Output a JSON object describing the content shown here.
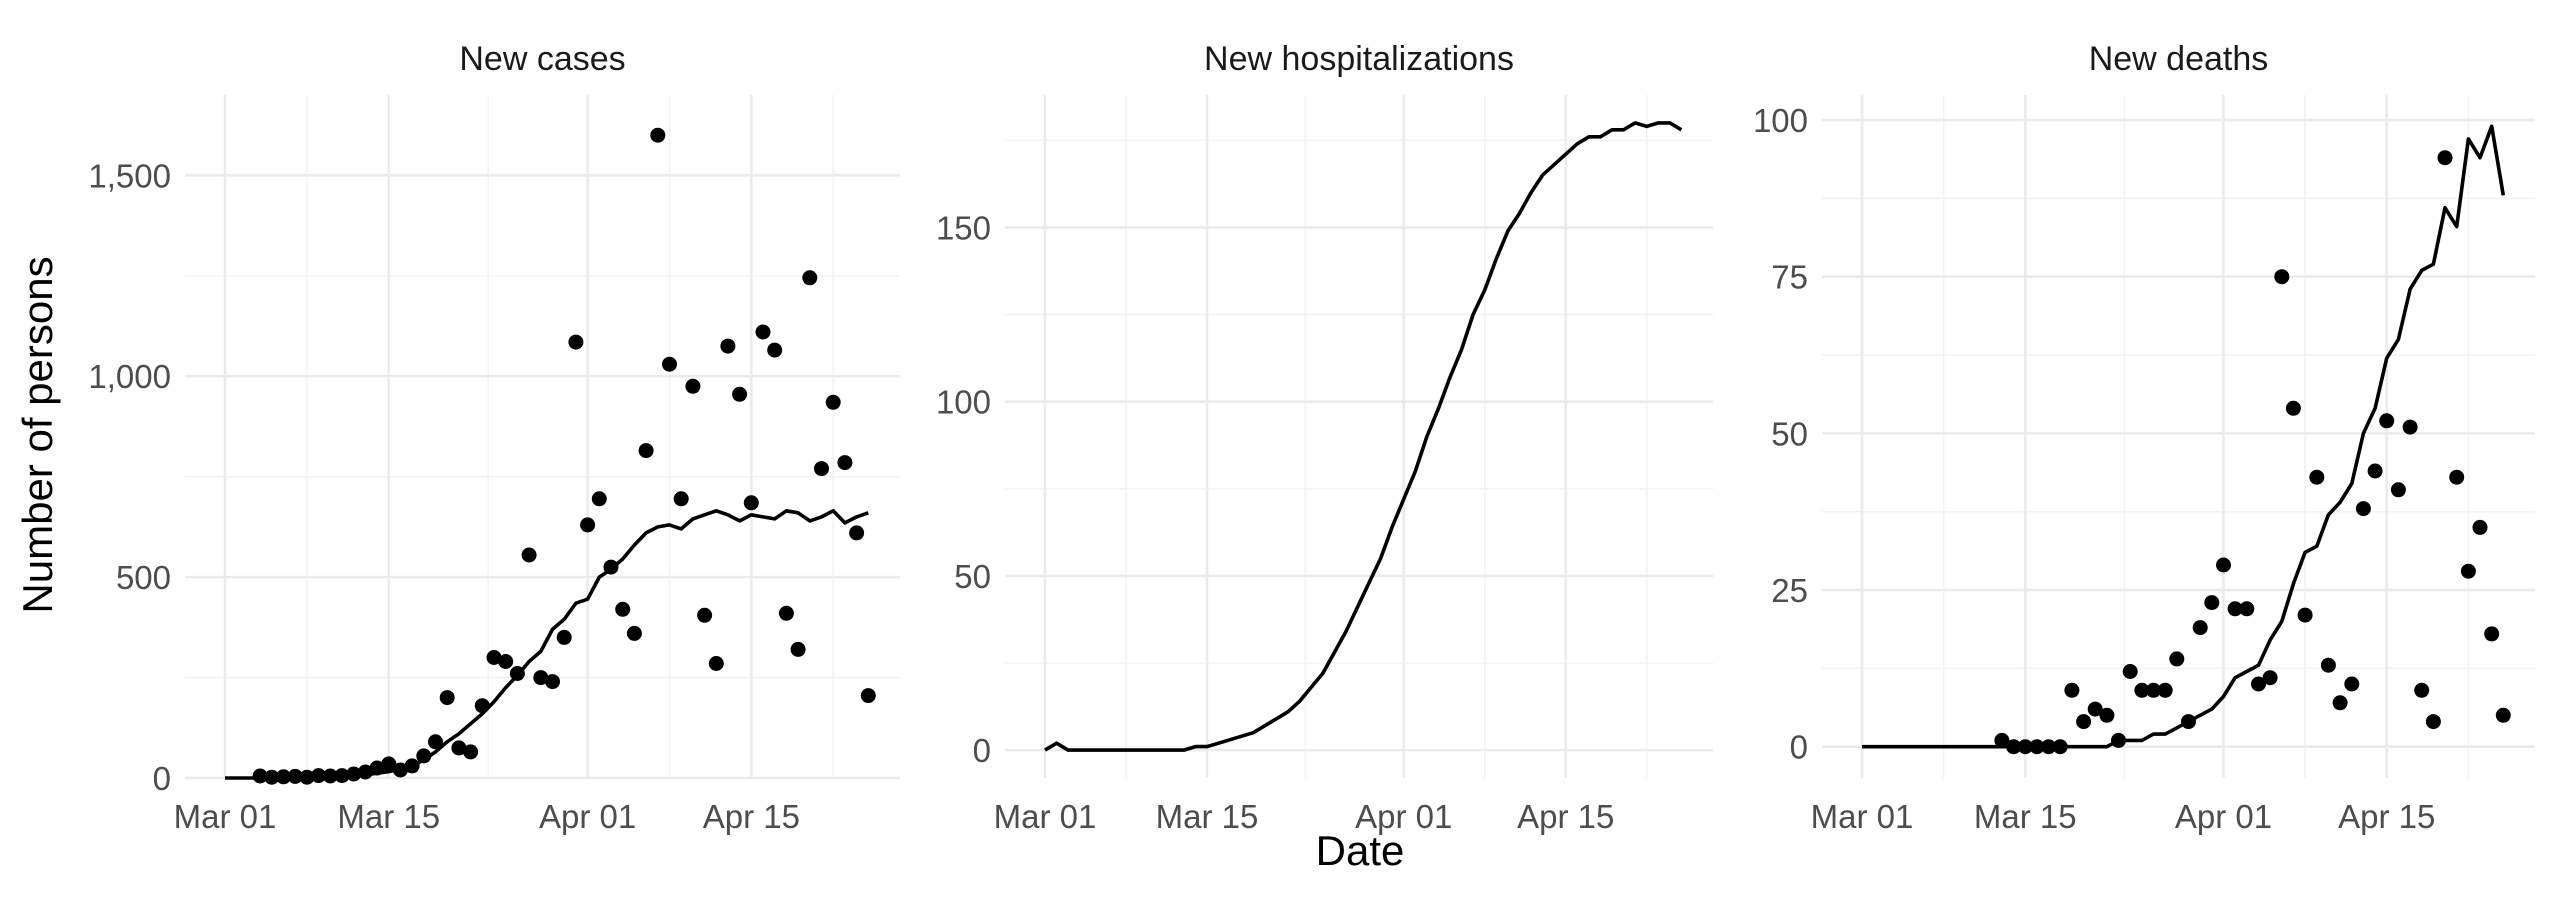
{
  "figure": {
    "ylabel": "Number of persons",
    "xlabel": "Date"
  },
  "chart_data": [
    {
      "type": "scatter",
      "title": "New cases",
      "xlabel": "Date",
      "ylabel": "Number of persons",
      "x_range": [
        "2020-03-01",
        "2020-04-26"
      ],
      "ylim": [
        0,
        1700
      ],
      "x_ticks": [
        {
          "date": "2020-03-01",
          "label": "Mar 01"
        },
        {
          "date": "2020-03-15",
          "label": "Mar 15"
        },
        {
          "date": "2020-04-01",
          "label": "Apr 01"
        },
        {
          "date": "2020-04-15",
          "label": "Apr 15"
        }
      ],
      "y_ticks": [
        {
          "value": 0,
          "label": "0"
        },
        {
          "value": 500,
          "label": "500"
        },
        {
          "value": 1000,
          "label": "1,000"
        },
        {
          "value": 1500,
          "label": "1,500"
        }
      ],
      "grid": true,
      "points": [
        [
          "2020-03-04",
          5
        ],
        [
          "2020-03-05",
          2
        ],
        [
          "2020-03-06",
          3
        ],
        [
          "2020-03-07",
          4
        ],
        [
          "2020-03-08",
          2
        ],
        [
          "2020-03-09",
          6
        ],
        [
          "2020-03-10",
          5
        ],
        [
          "2020-03-11",
          6
        ],
        [
          "2020-03-12",
          10
        ],
        [
          "2020-03-13",
          15
        ],
        [
          "2020-03-14",
          25
        ],
        [
          "2020-03-15",
          35
        ],
        [
          "2020-03-16",
          20
        ],
        [
          "2020-03-17",
          30
        ],
        [
          "2020-03-18",
          55
        ],
        [
          "2020-03-19",
          90
        ],
        [
          "2020-03-20",
          200
        ],
        [
          "2020-03-21",
          75
        ],
        [
          "2020-03-22",
          65
        ],
        [
          "2020-03-23",
          180
        ],
        [
          "2020-03-24",
          300
        ],
        [
          "2020-03-25",
          290
        ],
        [
          "2020-03-26",
          260
        ],
        [
          "2020-03-27",
          555
        ],
        [
          "2020-03-28",
          250
        ],
        [
          "2020-03-29",
          240
        ],
        [
          "2020-03-30",
          350
        ],
        [
          "2020-03-31",
          1085
        ],
        [
          "2020-04-01",
          630
        ],
        [
          "2020-04-02",
          695
        ],
        [
          "2020-04-03",
          525
        ],
        [
          "2020-04-04",
          420
        ],
        [
          "2020-04-05",
          360
        ],
        [
          "2020-04-06",
          815
        ],
        [
          "2020-04-07",
          1600
        ],
        [
          "2020-04-08",
          1030
        ],
        [
          "2020-04-09",
          695
        ],
        [
          "2020-04-10",
          975
        ],
        [
          "2020-04-11",
          405
        ],
        [
          "2020-04-12",
          285
        ],
        [
          "2020-04-13",
          1075
        ],
        [
          "2020-04-14",
          955
        ],
        [
          "2020-04-15",
          685
        ],
        [
          "2020-04-16",
          1110
        ],
        [
          "2020-04-17",
          1065
        ],
        [
          "2020-04-18",
          410
        ],
        [
          "2020-04-19",
          320
        ],
        [
          "2020-04-20",
          1245
        ],
        [
          "2020-04-21",
          770
        ],
        [
          "2020-04-22",
          935
        ],
        [
          "2020-04-23",
          785
        ],
        [
          "2020-04-24",
          610
        ],
        [
          "2020-04-25",
          205
        ]
      ],
      "line": [
        [
          "2020-03-01",
          0
        ],
        [
          "2020-03-02",
          0
        ],
        [
          "2020-03-03",
          0
        ],
        [
          "2020-03-04",
          0
        ],
        [
          "2020-03-05",
          0
        ],
        [
          "2020-03-06",
          0
        ],
        [
          "2020-03-07",
          0
        ],
        [
          "2020-03-08",
          1
        ],
        [
          "2020-03-09",
          2
        ],
        [
          "2020-03-10",
          3
        ],
        [
          "2020-03-11",
          4
        ],
        [
          "2020-03-12",
          6
        ],
        [
          "2020-03-13",
          8
        ],
        [
          "2020-03-14",
          12
        ],
        [
          "2020-03-15",
          16
        ],
        [
          "2020-03-16",
          22
        ],
        [
          "2020-03-17",
          30
        ],
        [
          "2020-03-18",
          45
        ],
        [
          "2020-03-19",
          65
        ],
        [
          "2020-03-20",
          90
        ],
        [
          "2020-03-21",
          110
        ],
        [
          "2020-03-22",
          135
        ],
        [
          "2020-03-23",
          160
        ],
        [
          "2020-03-24",
          190
        ],
        [
          "2020-03-25",
          225
        ],
        [
          "2020-03-26",
          255
        ],
        [
          "2020-03-27",
          290
        ],
        [
          "2020-03-28",
          315
        ],
        [
          "2020-03-29",
          370
        ],
        [
          "2020-03-30",
          395
        ],
        [
          "2020-03-31",
          435
        ],
        [
          "2020-04-01",
          445
        ],
        [
          "2020-04-02",
          500
        ],
        [
          "2020-04-03",
          520
        ],
        [
          "2020-04-04",
          545
        ],
        [
          "2020-04-05",
          580
        ],
        [
          "2020-04-06",
          610
        ],
        [
          "2020-04-07",
          625
        ],
        [
          "2020-04-08",
          630
        ],
        [
          "2020-04-09",
          620
        ],
        [
          "2020-04-10",
          645
        ],
        [
          "2020-04-11",
          655
        ],
        [
          "2020-04-12",
          665
        ],
        [
          "2020-04-13",
          655
        ],
        [
          "2020-04-14",
          640
        ],
        [
          "2020-04-15",
          655
        ],
        [
          "2020-04-16",
          650
        ],
        [
          "2020-04-17",
          645
        ],
        [
          "2020-04-18",
          665
        ],
        [
          "2020-04-19",
          660
        ],
        [
          "2020-04-20",
          640
        ],
        [
          "2020-04-21",
          650
        ],
        [
          "2020-04-22",
          665
        ],
        [
          "2020-04-23",
          635
        ],
        [
          "2020-04-24",
          650
        ],
        [
          "2020-04-25",
          660
        ]
      ]
    },
    {
      "type": "line",
      "title": "New hospitalizations",
      "xlabel": "Date",
      "ylabel": "Number of persons",
      "x_range": [
        "2020-03-01",
        "2020-04-26"
      ],
      "ylim": [
        -8,
        188
      ],
      "x_ticks": [
        {
          "date": "2020-03-01",
          "label": "Mar 01"
        },
        {
          "date": "2020-03-15",
          "label": "Mar 15"
        },
        {
          "date": "2020-04-01",
          "label": "Apr 01"
        },
        {
          "date": "2020-04-15",
          "label": "Apr 15"
        }
      ],
      "y_ticks": [
        {
          "value": 0,
          "label": "0"
        },
        {
          "value": 50,
          "label": "50"
        },
        {
          "value": 100,
          "label": "100"
        },
        {
          "value": 150,
          "label": "150"
        }
      ],
      "grid": true,
      "points": [],
      "line": [
        [
          "2020-03-01",
          0
        ],
        [
          "2020-03-02",
          2
        ],
        [
          "2020-03-03",
          0
        ],
        [
          "2020-03-04",
          0
        ],
        [
          "2020-03-05",
          0
        ],
        [
          "2020-03-06",
          0
        ],
        [
          "2020-03-07",
          0
        ],
        [
          "2020-03-08",
          0
        ],
        [
          "2020-03-09",
          0
        ],
        [
          "2020-03-10",
          0
        ],
        [
          "2020-03-11",
          0
        ],
        [
          "2020-03-12",
          0
        ],
        [
          "2020-03-13",
          0
        ],
        [
          "2020-03-14",
          1
        ],
        [
          "2020-03-15",
          1
        ],
        [
          "2020-03-16",
          2
        ],
        [
          "2020-03-17",
          3
        ],
        [
          "2020-03-18",
          4
        ],
        [
          "2020-03-19",
          5
        ],
        [
          "2020-03-20",
          7
        ],
        [
          "2020-03-21",
          9
        ],
        [
          "2020-03-22",
          11
        ],
        [
          "2020-03-23",
          14
        ],
        [
          "2020-03-24",
          18
        ],
        [
          "2020-03-25",
          22
        ],
        [
          "2020-03-26",
          28
        ],
        [
          "2020-03-27",
          34
        ],
        [
          "2020-03-28",
          41
        ],
        [
          "2020-03-29",
          48
        ],
        [
          "2020-03-30",
          55
        ],
        [
          "2020-03-31",
          64
        ],
        [
          "2020-04-01",
          72
        ],
        [
          "2020-04-02",
          80
        ],
        [
          "2020-04-03",
          90
        ],
        [
          "2020-04-04",
          98
        ],
        [
          "2020-04-05",
          107
        ],
        [
          "2020-04-06",
          115
        ],
        [
          "2020-04-07",
          125
        ],
        [
          "2020-04-08",
          132
        ],
        [
          "2020-04-09",
          141
        ],
        [
          "2020-04-10",
          149
        ],
        [
          "2020-04-11",
          154
        ],
        [
          "2020-04-12",
          160
        ],
        [
          "2020-04-13",
          165
        ],
        [
          "2020-04-14",
          168
        ],
        [
          "2020-04-15",
          171
        ],
        [
          "2020-04-16",
          174
        ],
        [
          "2020-04-17",
          176
        ],
        [
          "2020-04-18",
          176
        ],
        [
          "2020-04-19",
          178
        ],
        [
          "2020-04-20",
          178
        ],
        [
          "2020-04-21",
          180
        ],
        [
          "2020-04-22",
          179
        ],
        [
          "2020-04-23",
          180
        ],
        [
          "2020-04-24",
          180
        ],
        [
          "2020-04-25",
          178
        ]
      ]
    },
    {
      "type": "scatter",
      "title": "New deaths",
      "xlabel": "Date",
      "ylabel": "Number of persons",
      "x_range": [
        "2020-03-01",
        "2020-04-26"
      ],
      "ylim": [
        -5,
        104
      ],
      "x_ticks": [
        {
          "date": "2020-03-01",
          "label": "Mar 01"
        },
        {
          "date": "2020-03-15",
          "label": "Mar 15"
        },
        {
          "date": "2020-04-01",
          "label": "Apr 01"
        },
        {
          "date": "2020-04-15",
          "label": "Apr 15"
        }
      ],
      "y_ticks": [
        {
          "value": 0,
          "label": "0"
        },
        {
          "value": 25,
          "label": "25"
        },
        {
          "value": 50,
          "label": "50"
        },
        {
          "value": 75,
          "label": "75"
        },
        {
          "value": 100,
          "label": "100"
        }
      ],
      "grid": true,
      "points": [
        [
          "2020-03-13",
          1
        ],
        [
          "2020-03-14",
          0
        ],
        [
          "2020-03-15",
          0
        ],
        [
          "2020-03-16",
          0
        ],
        [
          "2020-03-17",
          0
        ],
        [
          "2020-03-18",
          0
        ],
        [
          "2020-03-19",
          9
        ],
        [
          "2020-03-20",
          4
        ],
        [
          "2020-03-21",
          6
        ],
        [
          "2020-03-22",
          5
        ],
        [
          "2020-03-23",
          1
        ],
        [
          "2020-03-24",
          12
        ],
        [
          "2020-03-25",
          9
        ],
        [
          "2020-03-26",
          9
        ],
        [
          "2020-03-27",
          9
        ],
        [
          "2020-03-28",
          14
        ],
        [
          "2020-03-29",
          4
        ],
        [
          "2020-03-30",
          19
        ],
        [
          "2020-03-31",
          23
        ],
        [
          "2020-04-01",
          29
        ],
        [
          "2020-04-02",
          22
        ],
        [
          "2020-04-03",
          22
        ],
        [
          "2020-04-04",
          10
        ],
        [
          "2020-04-05",
          11
        ],
        [
          "2020-04-06",
          75
        ],
        [
          "2020-04-07",
          54
        ],
        [
          "2020-04-08",
          21
        ],
        [
          "2020-04-09",
          43
        ],
        [
          "2020-04-10",
          13
        ],
        [
          "2020-04-11",
          7
        ],
        [
          "2020-04-12",
          10
        ],
        [
          "2020-04-13",
          38
        ],
        [
          "2020-04-14",
          44
        ],
        [
          "2020-04-15",
          52
        ],
        [
          "2020-04-16",
          41
        ],
        [
          "2020-04-17",
          51
        ],
        [
          "2020-04-18",
          9
        ],
        [
          "2020-04-19",
          4
        ],
        [
          "2020-04-20",
          94
        ],
        [
          "2020-04-21",
          43
        ],
        [
          "2020-04-22",
          28
        ],
        [
          "2020-04-23",
          35
        ],
        [
          "2020-04-24",
          18
        ],
        [
          "2020-04-25",
          5
        ]
      ],
      "line": [
        [
          "2020-03-01",
          0
        ],
        [
          "2020-03-02",
          0
        ],
        [
          "2020-03-03",
          0
        ],
        [
          "2020-03-04",
          0
        ],
        [
          "2020-03-05",
          0
        ],
        [
          "2020-03-06",
          0
        ],
        [
          "2020-03-07",
          0
        ],
        [
          "2020-03-08",
          0
        ],
        [
          "2020-03-09",
          0
        ],
        [
          "2020-03-10",
          0
        ],
        [
          "2020-03-11",
          0
        ],
        [
          "2020-03-12",
          0
        ],
        [
          "2020-03-13",
          0
        ],
        [
          "2020-03-14",
          0
        ],
        [
          "2020-03-15",
          0
        ],
        [
          "2020-03-16",
          0
        ],
        [
          "2020-03-17",
          0
        ],
        [
          "2020-03-18",
          0
        ],
        [
          "2020-03-19",
          0
        ],
        [
          "2020-03-20",
          0
        ],
        [
          "2020-03-21",
          0
        ],
        [
          "2020-03-22",
          0
        ],
        [
          "2020-03-23",
          1
        ],
        [
          "2020-03-24",
          1
        ],
        [
          "2020-03-25",
          1
        ],
        [
          "2020-03-26",
          2
        ],
        [
          "2020-03-27",
          2
        ],
        [
          "2020-03-28",
          3
        ],
        [
          "2020-03-29",
          4
        ],
        [
          "2020-03-30",
          5
        ],
        [
          "2020-03-31",
          6
        ],
        [
          "2020-04-01",
          8
        ],
        [
          "2020-04-02",
          11
        ],
        [
          "2020-04-03",
          12
        ],
        [
          "2020-04-04",
          13
        ],
        [
          "2020-04-05",
          17
        ],
        [
          "2020-04-06",
          20
        ],
        [
          "2020-04-07",
          26
        ],
        [
          "2020-04-08",
          31
        ],
        [
          "2020-04-09",
          32
        ],
        [
          "2020-04-10",
          37
        ],
        [
          "2020-04-11",
          39
        ],
        [
          "2020-04-12",
          42
        ],
        [
          "2020-04-13",
          50
        ],
        [
          "2020-04-14",
          54
        ],
        [
          "2020-04-15",
          62
        ],
        [
          "2020-04-16",
          65
        ],
        [
          "2020-04-17",
          73
        ],
        [
          "2020-04-18",
          76
        ],
        [
          "2020-04-19",
          77
        ],
        [
          "2020-04-20",
          86
        ],
        [
          "2020-04-21",
          83
        ],
        [
          "2020-04-22",
          97
        ],
        [
          "2020-04-23",
          94
        ],
        [
          "2020-04-24",
          99
        ],
        [
          "2020-04-25",
          88
        ]
      ]
    }
  ]
}
